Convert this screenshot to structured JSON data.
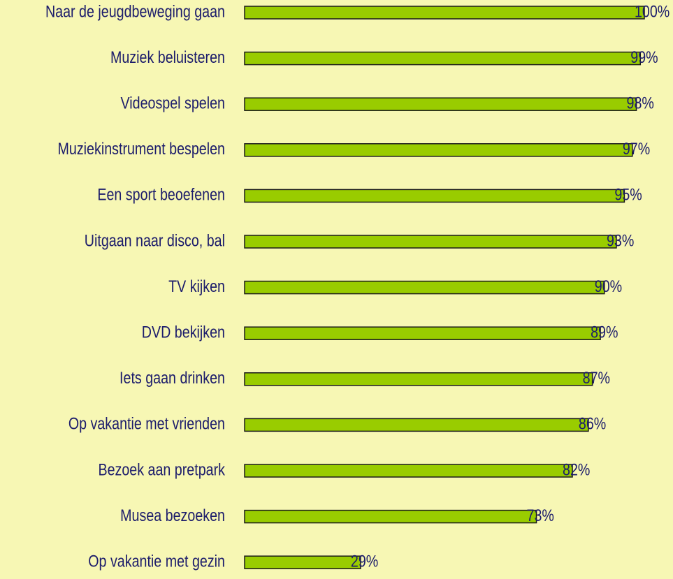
{
  "chart_data": {
    "type": "barh",
    "categories": [
      "Naar de jeugdbeweging gaan",
      "Muziek beluisteren",
      "Videospel spelen",
      "Muziekinstrument bespelen",
      "Een sport beoefenen",
      "Uitgaan naar disco, bal",
      "TV kijken",
      "DVD bekijken",
      "Iets gaan drinken",
      "Op vakantie met vrienden",
      "Bezoek aan pretpark",
      "Musea bezoeken",
      "Op vakantie met gezin"
    ],
    "values": [
      100,
      99,
      98,
      97,
      95,
      93,
      90,
      89,
      87,
      86,
      82,
      73,
      29
    ],
    "value_labels": [
      "100%",
      "99%",
      "98%",
      "97%",
      "95%",
      "93%",
      "90%",
      "89%",
      "87%",
      "86%",
      "82%",
      "73%",
      "29%"
    ],
    "color": "#99cc00",
    "xlim": [
      0,
      100
    ]
  }
}
